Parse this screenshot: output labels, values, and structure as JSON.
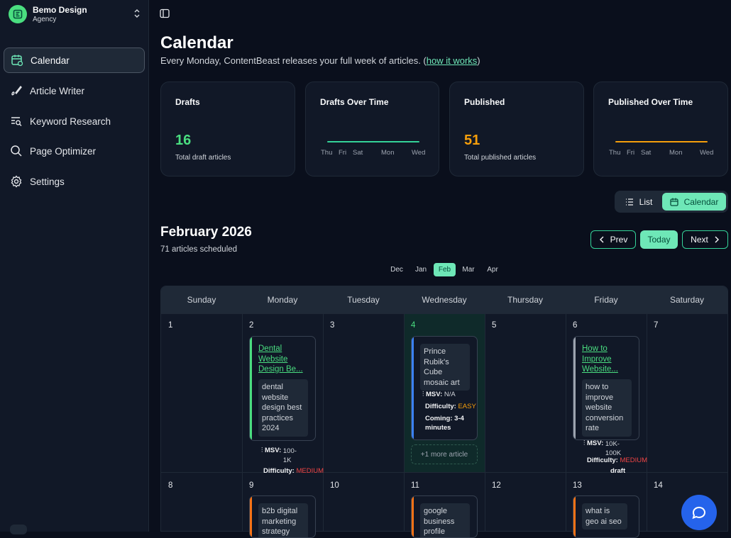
{
  "workspace": {
    "name": "Bemo Design",
    "type": "Agency"
  },
  "nav": [
    {
      "label": "Calendar",
      "icon": "calendar-clock-icon",
      "active": true
    },
    {
      "label": "Article Writer",
      "icon": "pen-icon"
    },
    {
      "label": "Keyword Research",
      "icon": "list-search-icon"
    },
    {
      "label": "Page Optimizer",
      "icon": "search-icon"
    },
    {
      "label": "Settings",
      "icon": "gear-icon"
    }
  ],
  "header": {
    "title": "Calendar",
    "subtitle": "Every Monday, ContentBeast releases your full week of articles. (",
    "link": "how it works",
    "subtitle_end": ")"
  },
  "stats": {
    "drafts": {
      "title": "Drafts",
      "value": "16",
      "desc": "Total draft articles",
      "color": "#4ade80"
    },
    "drafts_time": {
      "title": "Drafts Over Time",
      "labels": [
        "Thu",
        "Fri",
        "Sat",
        "Mon",
        "Wed"
      ],
      "color": "#34d399"
    },
    "published": {
      "title": "Published",
      "value": "51",
      "desc": "Total published articles",
      "color": "#f59e0b"
    },
    "published_time": {
      "title": "Published Over Time",
      "labels": [
        "Thu",
        "Fri",
        "Sat",
        "Mon",
        "Wed"
      ],
      "color": "#f59e0b"
    }
  },
  "view_toggle": {
    "list": "List",
    "calendar": "Calendar"
  },
  "calendar": {
    "month": "February 2026",
    "scheduled": "71 articles scheduled",
    "prev": "Prev",
    "today": "Today",
    "next": "Next",
    "months": [
      "Dec",
      "Jan",
      "Feb",
      "Mar",
      "Apr"
    ],
    "selected_month": "Feb",
    "days": [
      "Sunday",
      "Monday",
      "Tuesday",
      "Wednesday",
      "Thursday",
      "Friday",
      "Saturday"
    ],
    "week1": [
      "1",
      "2",
      "3",
      "4",
      "5",
      "6",
      "7"
    ],
    "week2": [
      "8",
      "9",
      "10",
      "11",
      "12",
      "13",
      "14"
    ],
    "events": {
      "mon": {
        "title": "Dental Website Design Be...",
        "keyword": "dental website design best practices 2024",
        "msv_label": "MSV:",
        "msv": "100-1K",
        "diff_label": "Difficulty:",
        "diff": "MEDIUM"
      },
      "wed": {
        "keyword": "Prince Rubik's Cube mosaic art",
        "msv_label": "MSV:",
        "msv": "N/A",
        "diff_label": "Difficulty:",
        "diff": "EASY",
        "coming": "Coming: 3-4 minutes"
      },
      "fri": {
        "title": "How to Improve Website...",
        "keyword": "how to improve website conversion rate",
        "msv_label": "MSV:",
        "msv": "10K-100K",
        "diff_label": "Difficulty:",
        "diff": "MEDIUM",
        "status": "draft"
      },
      "mon2": {
        "keyword": "b2b digital marketing strategy"
      },
      "wed2": {
        "keyword": "google business profile"
      },
      "fri2": {
        "keyword": "what is geo ai seo"
      }
    },
    "more": "+1 more article"
  },
  "colors": {
    "accent": "#6ee7b7",
    "green": "#4ade80",
    "orange": "#f97316",
    "blue": "#3b82f6",
    "gray": "#9ca3af"
  }
}
